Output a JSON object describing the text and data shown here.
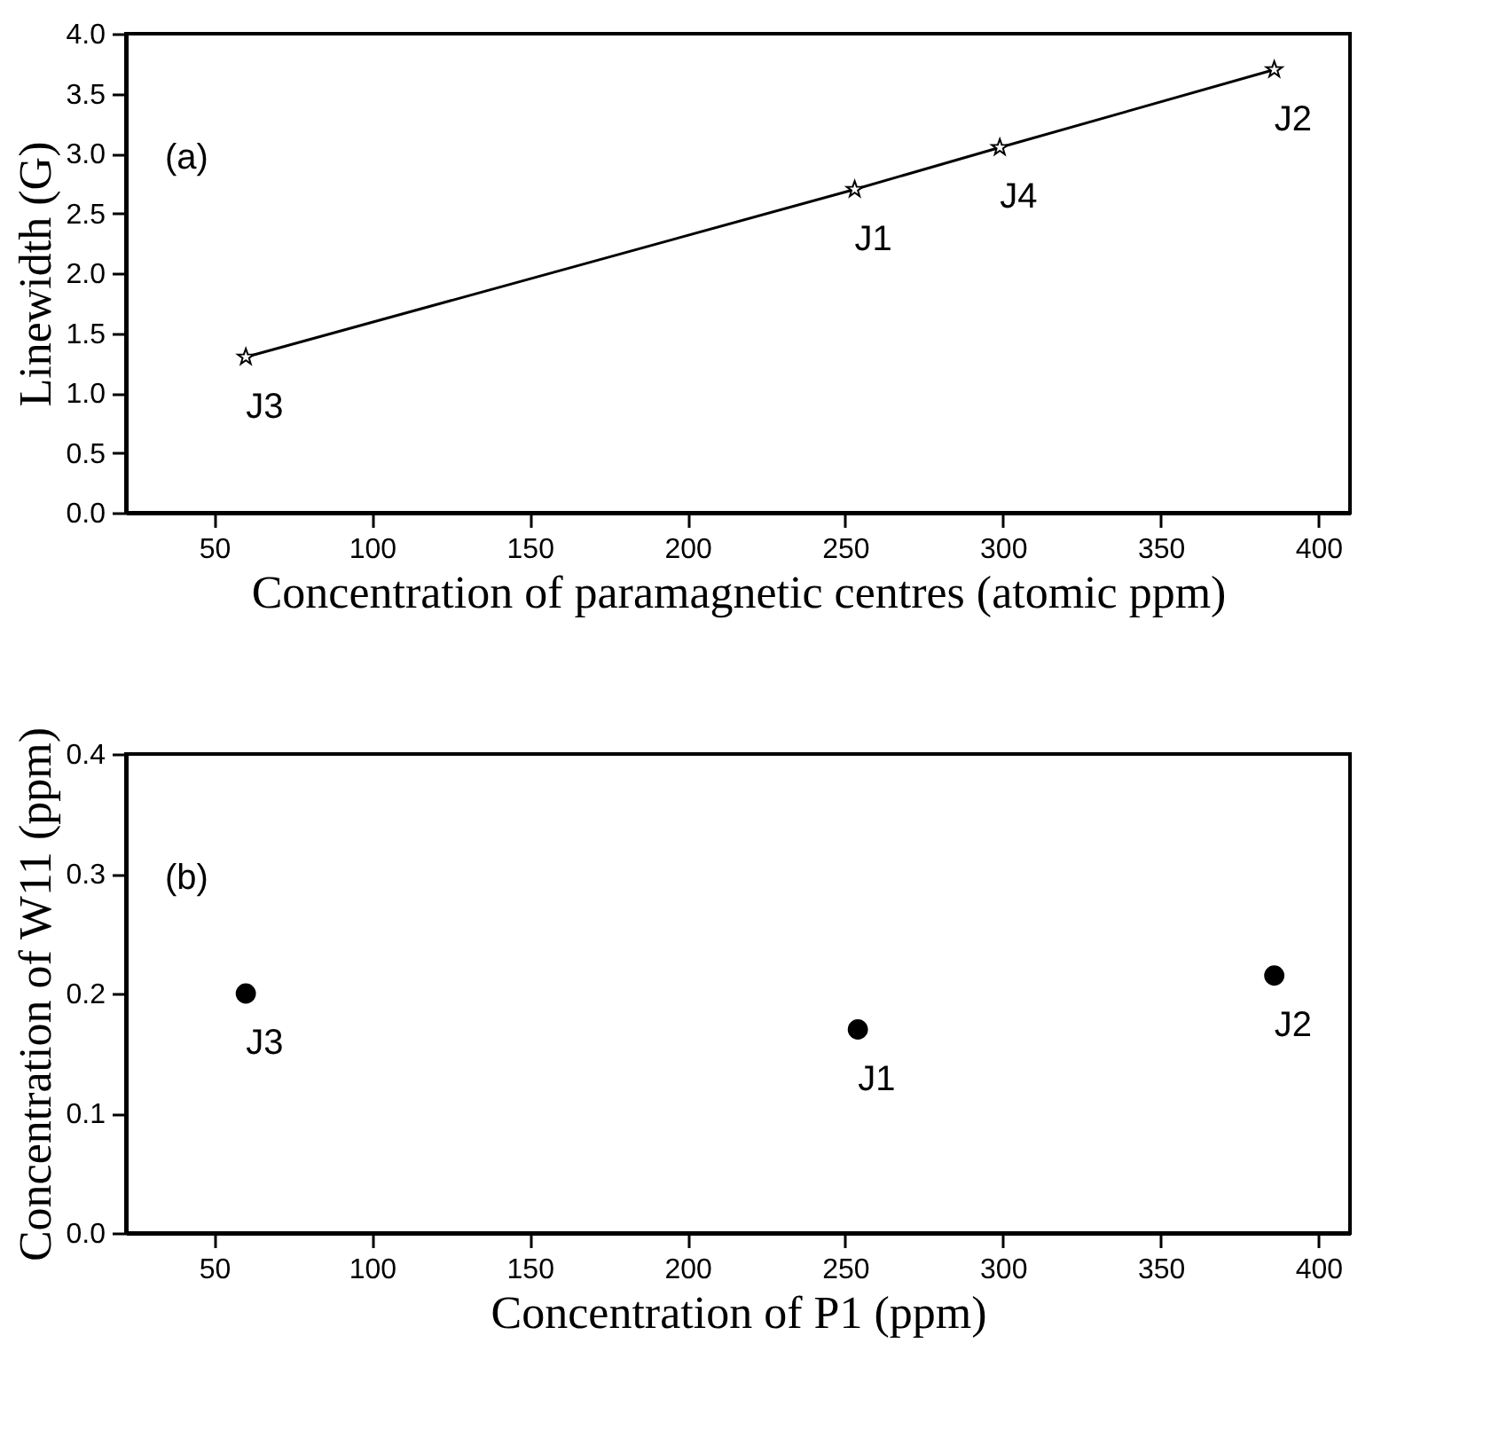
{
  "chart_data": [
    {
      "type": "line",
      "xlabel": "Concentration of paramagnetic centres (atomic ppm)",
      "ylabel": "Linewidth (G)",
      "x": [
        60,
        253,
        299,
        386
      ],
      "series": [
        {
          "color": "#000000",
          "values": [
            1.3,
            2.7,
            3.05,
            3.7
          ]
        }
      ],
      "marker": "star",
      "line_style": "solid",
      "grid": false,
      "xlim": [
        22,
        410
      ],
      "xticks": [
        50,
        100,
        150,
        200,
        250,
        300,
        350,
        400
      ],
      "ylim": [
        0,
        4
      ],
      "yticks": [
        {
          "value": 0,
          "label": "0.0"
        },
        0.5,
        {
          "value": 1,
          "label": "1.0"
        },
        1.5,
        {
          "value": 2,
          "label": "2.0"
        },
        2.5,
        {
          "value": 3,
          "label": "3.0"
        },
        3.5,
        {
          "value": 4,
          "label": "4.0"
        }
      ],
      "annotations": [
        "(a)",
        {
          "text": "J3",
          "x": 60,
          "y": 1.3
        },
        {
          "text": "J1",
          "x": 253,
          "y": 2.7
        },
        {
          "text": "J4",
          "x": 299,
          "y": 3.05
        },
        {
          "text": "J2",
          "x": 386,
          "y": 3.7
        }
      ]
    },
    {
      "type": "scatter",
      "xlabel": "Concentration of P1 (ppm)",
      "ylabel": "Concentration of W11 (ppm)",
      "x": [
        60,
        254,
        386
      ],
      "series": [
        {
          "color": "#000000",
          "values": [
            0.2,
            0.17,
            0.215
          ]
        }
      ],
      "marker": "circle",
      "grid": false,
      "xlim": [
        22,
        410
      ],
      "xticks": [
        50,
        100,
        150,
        200,
        250,
        300,
        350,
        400
      ],
      "ylim": [
        0,
        0.4
      ],
      "yticks": [
        {
          "value": 0,
          "label": "0.0"
        },
        0.1,
        0.2,
        0.3,
        0.4
      ],
      "annotations": [
        "(b)",
        {
          "text": "J3",
          "x": 60,
          "y": 0.2
        },
        {
          "text": "J1",
          "x": 254,
          "y": 0.17
        },
        {
          "text": "J2",
          "x": 386,
          "y": 0.215
        }
      ]
    }
  ]
}
